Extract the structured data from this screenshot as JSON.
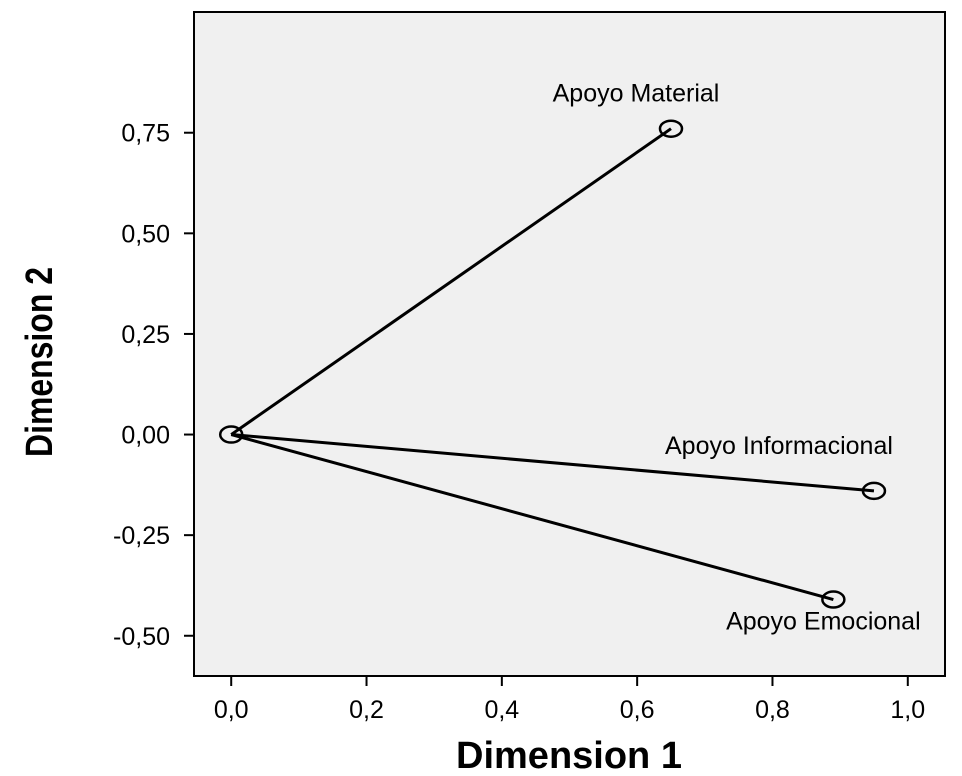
{
  "chart_data": {
    "type": "scatter",
    "xlabel": "Dimension 1",
    "ylabel": "Dimension 2",
    "xlim": [
      -0.055,
      1.055
    ],
    "ylim": [
      -0.6,
      1.05
    ],
    "x_ticks": [
      0.0,
      0.2,
      0.4,
      0.6,
      0.8,
      1.0
    ],
    "x_tick_labels": [
      "0,0",
      "0,2",
      "0,4",
      "0,6",
      "0,8",
      "1,0"
    ],
    "y_ticks": [
      0.75,
      0.5,
      0.25,
      0.0,
      -0.25,
      -0.5
    ],
    "y_tick_labels": [
      "0,75",
      "0,50",
      "0,25",
      "0,00",
      "-0,25",
      "-0,50"
    ],
    "origin": {
      "x": 0.0,
      "y": 0.0
    },
    "points": [
      {
        "label": "Apoyo Material",
        "x": 0.65,
        "y": 0.76,
        "label_pos": "above"
      },
      {
        "label": "Apoyo Informacional",
        "x": 0.95,
        "y": -0.14,
        "label_pos": "above-left"
      },
      {
        "label": "Apoyo Emocional",
        "x": 0.89,
        "y": -0.41,
        "label_pos": "below"
      }
    ],
    "grid": false,
    "background_color": "#f0f0f0",
    "line_color": "#000000"
  }
}
